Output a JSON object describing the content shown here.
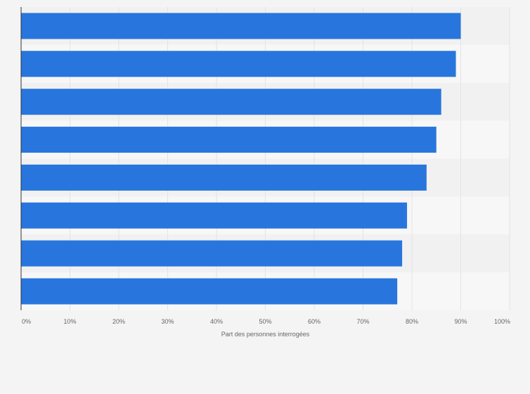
{
  "chart_data": {
    "type": "bar",
    "orientation": "horizontal",
    "title": "",
    "xlabel": "Part des personnes interrogées",
    "ylabel": "",
    "categories": [
      "",
      "",
      "",
      "",
      "",
      "",
      "",
      ""
    ],
    "values": [
      90,
      89,
      86,
      85,
      83,
      79,
      78,
      77
    ],
    "unit": "%",
    "xlim": [
      0,
      100
    ],
    "x_ticks": [
      "0%",
      "10%",
      "20%",
      "30%",
      "40%",
      "50%",
      "60%",
      "70%",
      "80%",
      "90%",
      "100%"
    ],
    "grid": true,
    "legend": "none",
    "colors": {
      "bar": "#2876dd",
      "background": "#f4f4f4",
      "plot_band_light": "#f7f7f7",
      "plot_band_dark": "#f1f1f1",
      "gridline": "#e3e3e3",
      "axis": "#333333",
      "text": "#666666"
    }
  }
}
